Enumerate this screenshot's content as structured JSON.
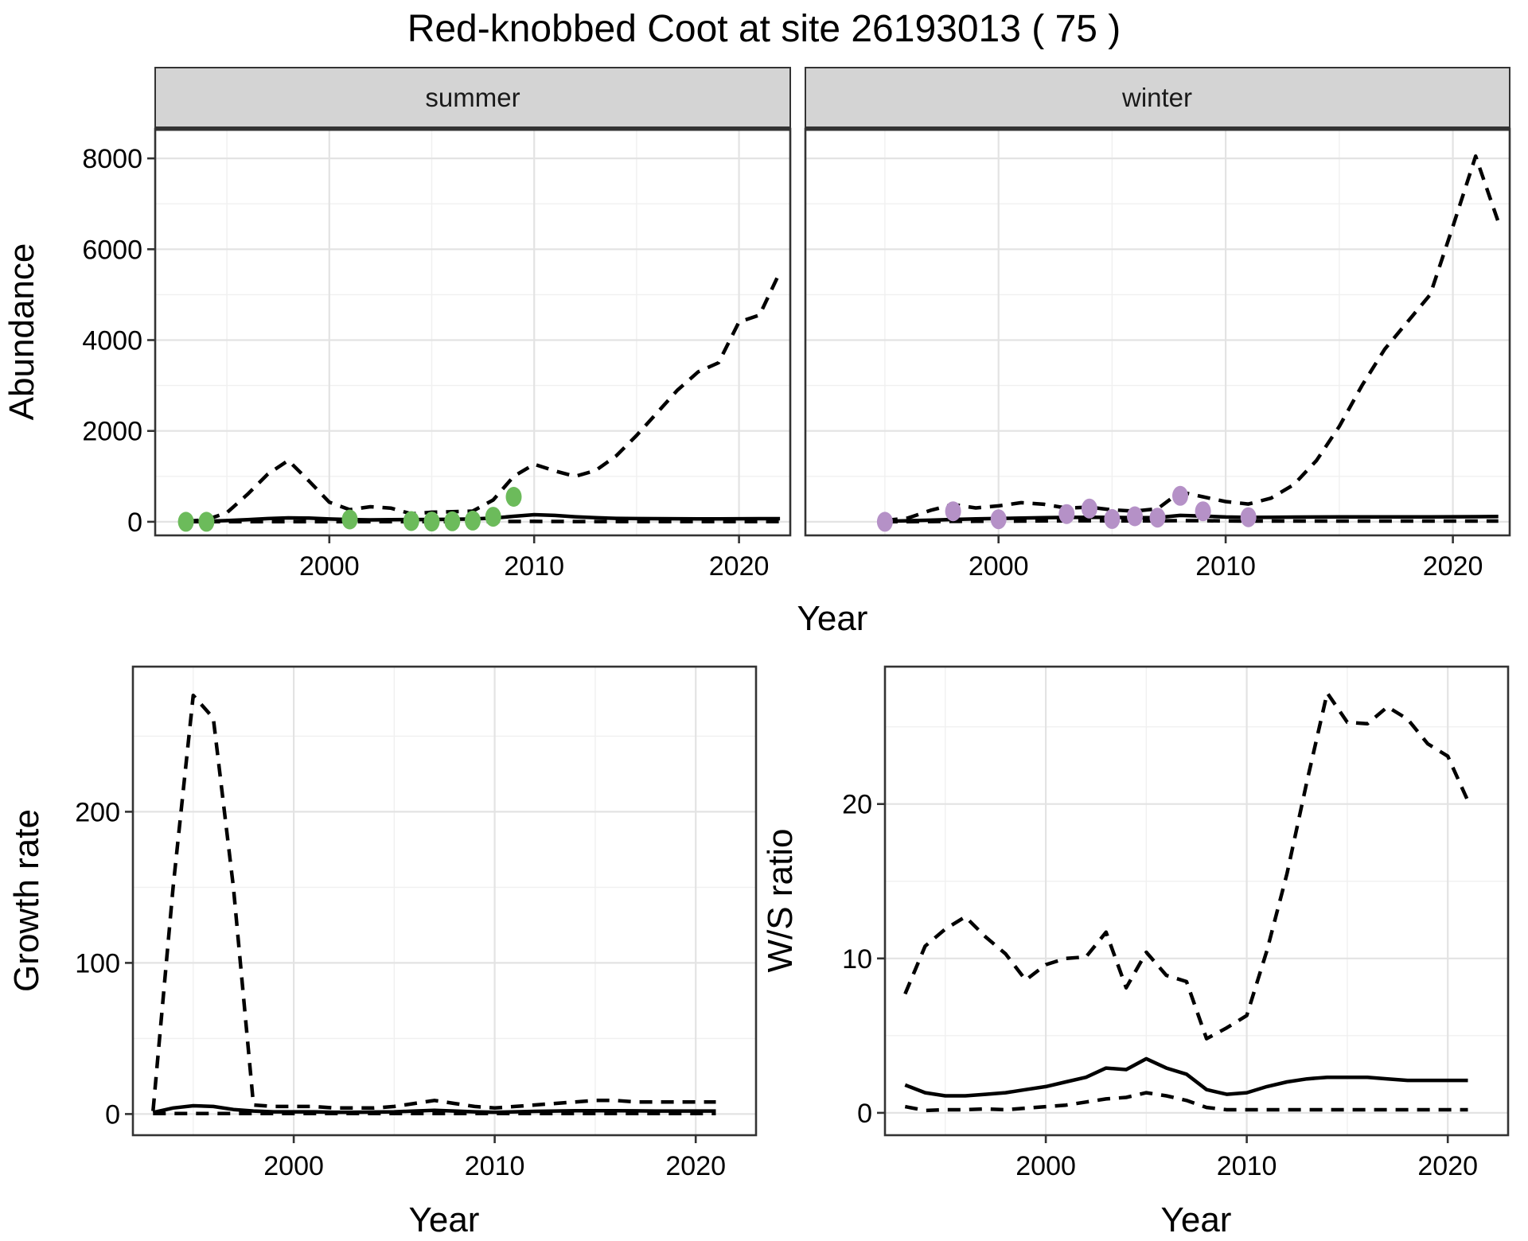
{
  "title": "Red-knobbed Coot at site 26193013 ( 75 )",
  "labels": {
    "abundance": "Abundance",
    "year": "Year",
    "growth": "Growth rate",
    "ws": "W/S ratio"
  },
  "style": {
    "background": "#FFFFFF",
    "panel_bg": "#FFFFFF",
    "grid_major": "#E3E3E3",
    "grid_minor": "#F0F0F0",
    "panel_border": "#333333",
    "strip_bg": "#D4D4D4",
    "strip_border": "#333333",
    "tick_color": "#333333",
    "tick_label_color": "#4D4D4D",
    "line_color": "#000000",
    "summer_point_color": "#6CBB5B",
    "winter_point_color": "#B591C7"
  },
  "chart_data": [
    {
      "id": "abundance-summer",
      "type": "line",
      "facet_label": "summer",
      "xlabel": "Year",
      "ylabel": "Abundance",
      "xlim": [
        1991.5,
        2022.5
      ],
      "ylim": [
        -300,
        8650
      ],
      "xticks": [
        2000,
        2010,
        2020
      ],
      "xminor": [
        1995,
        2005,
        2015
      ],
      "yticks": [
        0,
        2000,
        4000,
        6000,
        8000
      ],
      "yminor": [
        1000,
        3000,
        5000,
        7000
      ],
      "years": [
        1993,
        1994,
        1995,
        1996,
        1997,
        1998,
        1999,
        2000,
        2001,
        2002,
        2003,
        2004,
        2005,
        2006,
        2007,
        2008,
        2009,
        2010,
        2011,
        2012,
        2013,
        2014,
        2015,
        2016,
        2017,
        2018,
        2019,
        2020,
        2021,
        2022
      ],
      "series": [
        {
          "name": "modelled_median",
          "style": "solid",
          "values": [
            8,
            12,
            25,
            45,
            70,
            85,
            80,
            60,
            48,
            42,
            45,
            48,
            50,
            55,
            60,
            80,
            120,
            155,
            140,
            110,
            88,
            75,
            70,
            68,
            66,
            65,
            65,
            66,
            67,
            68
          ]
        },
        {
          "name": "upper_95ci",
          "style": "dashed",
          "values": [
            10,
            45,
            200,
            600,
            1050,
            1350,
            900,
            430,
            265,
            330,
            300,
            175,
            210,
            220,
            235,
            480,
            1000,
            1265,
            1120,
            1000,
            1130,
            1450,
            1900,
            2400,
            2900,
            3300,
            3500,
            4400,
            4550,
            5500
          ]
        },
        {
          "name": "lower_95ci",
          "style": "dashed",
          "values": [
            2,
            2,
            2,
            3,
            3,
            3,
            3,
            3,
            3,
            3,
            3,
            3,
            3,
            3,
            3,
            4,
            6,
            8,
            6,
            5,
            5,
            5,
            5,
            5,
            5,
            5,
            5,
            5,
            5,
            5
          ]
        }
      ],
      "points": {
        "name": "observed_counts_summer",
        "color": "#6CBB5B",
        "years": [
          1993,
          1994,
          2001,
          2004,
          2005,
          2006,
          2007,
          2008,
          2009
        ],
        "values": [
          0,
          0,
          50,
          15,
          5,
          10,
          25,
          110,
          550
        ]
      }
    },
    {
      "id": "abundance-winter",
      "type": "line",
      "facet_label": "winter",
      "xlabel": "Year",
      "ylabel": "Abundance",
      "xlim": [
        1991.5,
        2022.5
      ],
      "ylim": [
        -300,
        8650
      ],
      "xticks": [
        2000,
        2010,
        2020
      ],
      "xminor": [
        1995,
        2005,
        2015
      ],
      "yticks": [
        0,
        2000,
        4000,
        6000,
        8000
      ],
      "yminor": [
        1000,
        3000,
        5000,
        7000
      ],
      "years": [
        1995,
        1996,
        1997,
        1998,
        1999,
        2000,
        2001,
        2002,
        2003,
        2004,
        2005,
        2006,
        2007,
        2008,
        2009,
        2010,
        2011,
        2012,
        2013,
        2014,
        2015,
        2016,
        2017,
        2018,
        2019,
        2020,
        2021,
        2022
      ],
      "series": [
        {
          "name": "modelled_median",
          "style": "solid",
          "values": [
            12,
            22,
            35,
            50,
            62,
            72,
            82,
            90,
            95,
            100,
            96,
            88,
            92,
            140,
            125,
            105,
            95,
            98,
            102,
            105,
            106,
            106,
            106,
            107,
            108,
            110,
            112,
            115
          ]
        },
        {
          "name": "upper_95ci",
          "style": "dashed",
          "values": [
            28,
            80,
            250,
            380,
            305,
            350,
            420,
            385,
            300,
            320,
            262,
            235,
            285,
            660,
            550,
            445,
            390,
            520,
            820,
            1350,
            2100,
            3000,
            3800,
            4400,
            5000,
            6500,
            8050,
            6600
          ]
        },
        {
          "name": "lower_95ci",
          "style": "dashed",
          "values": [
            2,
            3,
            5,
            8,
            10,
            12,
            15,
            18,
            20,
            22,
            20,
            18,
            18,
            25,
            22,
            18,
            15,
            15,
            15,
            15,
            15,
            15,
            15,
            15,
            15,
            15,
            15,
            15
          ]
        }
      ],
      "points": {
        "name": "observed_counts_winter",
        "color": "#B591C7",
        "years": [
          1995,
          1998,
          2000,
          2003,
          2004,
          2005,
          2006,
          2007,
          2008,
          2009,
          2011
        ],
        "values": [
          0,
          230,
          55,
          170,
          290,
          60,
          120,
          90,
          570,
          230,
          100
        ]
      }
    },
    {
      "id": "growth-rate",
      "type": "line",
      "facet_label": "",
      "xlabel": "Year",
      "ylabel": "Growth rate",
      "xlim": [
        1992,
        2023
      ],
      "ylim": [
        -14,
        296
      ],
      "xticks": [
        2000,
        2010,
        2020
      ],
      "xminor": [
        1995,
        2005,
        2015
      ],
      "yticks": [
        0,
        100,
        200
      ],
      "yminor": [
        50,
        150,
        250
      ],
      "years": [
        1993,
        1994,
        1995,
        1996,
        1997,
        1998,
        1999,
        2000,
        2001,
        2002,
        2003,
        2004,
        2005,
        2006,
        2007,
        2008,
        2009,
        2010,
        2011,
        2012,
        2013,
        2014,
        2015,
        2016,
        2017,
        2018,
        2019,
        2020,
        2021
      ],
      "series": [
        {
          "name": "modelled_median",
          "style": "solid",
          "values": [
            1,
            4,
            5.5,
            5,
            3,
            2,
            1.5,
            1.5,
            1.5,
            1.2,
            1.2,
            1.3,
            1.5,
            2,
            2.5,
            2,
            1.5,
            1.2,
            1.5,
            1.8,
            2,
            2.2,
            2.2,
            2.2,
            2.1,
            2,
            2,
            2,
            2
          ]
        },
        {
          "name": "upper_95ci",
          "style": "dashed",
          "values": [
            2,
            150,
            277,
            262,
            150,
            6,
            5,
            5,
            5,
            4,
            4,
            4,
            5,
            7,
            9,
            7,
            5,
            4,
            5,
            6,
            7,
            8,
            9,
            9,
            8,
            8,
            8,
            8,
            8
          ]
        },
        {
          "name": "lower_95ci",
          "style": "dashed",
          "values": [
            0.3,
            0.3,
            0.3,
            0.3,
            0.3,
            0.3,
            0.3,
            0.3,
            0.3,
            0.3,
            0.3,
            0.3,
            0.3,
            0.3,
            0.3,
            0.3,
            0.3,
            0.3,
            0.3,
            0.3,
            0.3,
            0.3,
            0.3,
            0.3,
            0.3,
            0.3,
            0.3,
            0.3,
            0.3
          ]
        }
      ],
      "points": null
    },
    {
      "id": "ws-ratio",
      "type": "line",
      "facet_label": "",
      "xlabel": "Year",
      "ylabel": "W/S ratio",
      "xlim": [
        1992,
        2023
      ],
      "ylim": [
        -1.45,
        28.9
      ],
      "xticks": [
        2000,
        2010,
        2020
      ],
      "xminor": [
        1995,
        2005,
        2015
      ],
      "yticks": [
        0,
        10,
        20
      ],
      "yminor": [
        5,
        15,
        25
      ],
      "years": [
        1993,
        1994,
        1995,
        1996,
        1997,
        1998,
        1999,
        2000,
        2001,
        2002,
        2003,
        2004,
        2005,
        2006,
        2007,
        2008,
        2009,
        2010,
        2011,
        2012,
        2013,
        2014,
        2015,
        2016,
        2017,
        2018,
        2019,
        2020,
        2021
      ],
      "series": [
        {
          "name": "modelled_median",
          "style": "solid",
          "values": [
            1.8,
            1.3,
            1.1,
            1.1,
            1.2,
            1.3,
            1.5,
            1.7,
            2,
            2.3,
            2.9,
            2.8,
            3.5,
            2.9,
            2.5,
            1.5,
            1.2,
            1.3,
            1.7,
            2,
            2.2,
            2.3,
            2.3,
            2.3,
            2.2,
            2.1,
            2.1,
            2.1,
            2.1
          ]
        },
        {
          "name": "upper_95ci",
          "style": "dashed",
          "values": [
            7.7,
            10.8,
            11.9,
            12.7,
            11.4,
            10.3,
            8.6,
            9.6,
            10,
            10.1,
            11.7,
            8.1,
            10.4,
            8.9,
            8.5,
            4.8,
            5.5,
            6.3,
            10.5,
            15.5,
            21.5,
            27.2,
            25.3,
            25.2,
            26.3,
            25.5,
            23.9,
            23.1,
            20.2
          ]
        },
        {
          "name": "lower_95ci",
          "style": "dashed",
          "values": [
            0.4,
            0.15,
            0.2,
            0.2,
            0.25,
            0.2,
            0.3,
            0.4,
            0.5,
            0.7,
            0.9,
            1,
            1.3,
            1.1,
            0.8,
            0.35,
            0.2,
            0.2,
            0.2,
            0.2,
            0.2,
            0.2,
            0.2,
            0.2,
            0.2,
            0.2,
            0.2,
            0.2,
            0.2
          ]
        }
      ],
      "points": null
    }
  ]
}
